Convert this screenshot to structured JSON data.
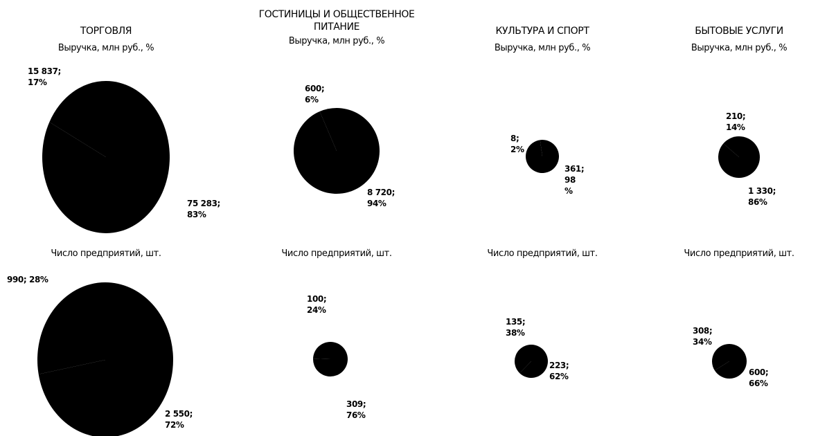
{
  "chart_data": [
    {
      "type": "pie",
      "title": "ТОРГОВЛЯ",
      "subtitle": "Выручка, млн руб., %",
      "values": [
        15837,
        75283
      ],
      "value_labels": [
        "15 837;\n17%",
        "75 283;\n83%"
      ],
      "color": "#000000"
    },
    {
      "type": "pie",
      "title": "ГОСТИНИЦЫ И ОБЩЕСТВЕННОЕ ПИТАНИЕ",
      "subtitle": "Выручка, млн руб., %",
      "values": [
        600,
        8720
      ],
      "value_labels": [
        "600;\n6%",
        "8 720;\n94%"
      ],
      "color": "#000000"
    },
    {
      "type": "pie",
      "title": "КУЛЬТУРА И СПОРТ",
      "subtitle": "Выручка, млн руб., %",
      "values": [
        8,
        361
      ],
      "value_labels": [
        "8;\n2%",
        "361;\n98\n%"
      ],
      "color": "#000000"
    },
    {
      "type": "pie",
      "title": "БЫТОВЫЕ УСЛУГИ",
      "subtitle": "Выручка, млн руб., %",
      "values": [
        210,
        1330
      ],
      "value_labels": [
        "210;\n14%",
        "1 330;\n86%"
      ],
      "color": "#000000"
    },
    {
      "type": "pie",
      "subtitle": "Число предприятий, шт.",
      "values": [
        990,
        2550
      ],
      "value_labels": [
        "990; 28%",
        "2 550;\n72%"
      ],
      "color": "#000000"
    },
    {
      "type": "pie",
      "subtitle": "Число предприятий, шт.",
      "values": [
        100,
        309
      ],
      "value_labels": [
        "100;\n24%",
        "309;\n76%"
      ],
      "color": "#000000"
    },
    {
      "type": "pie",
      "subtitle": "Число предприятий, шт.",
      "values": [
        135,
        223
      ],
      "value_labels": [
        "135;\n38%",
        "223;\n62%"
      ],
      "color": "#000000"
    },
    {
      "type": "pie",
      "subtitle": "Число предприятий, шт.",
      "values": [
        308,
        600
      ],
      "value_labels": [
        "308;\n34%",
        "600;\n66%"
      ],
      "color": "#000000"
    }
  ]
}
